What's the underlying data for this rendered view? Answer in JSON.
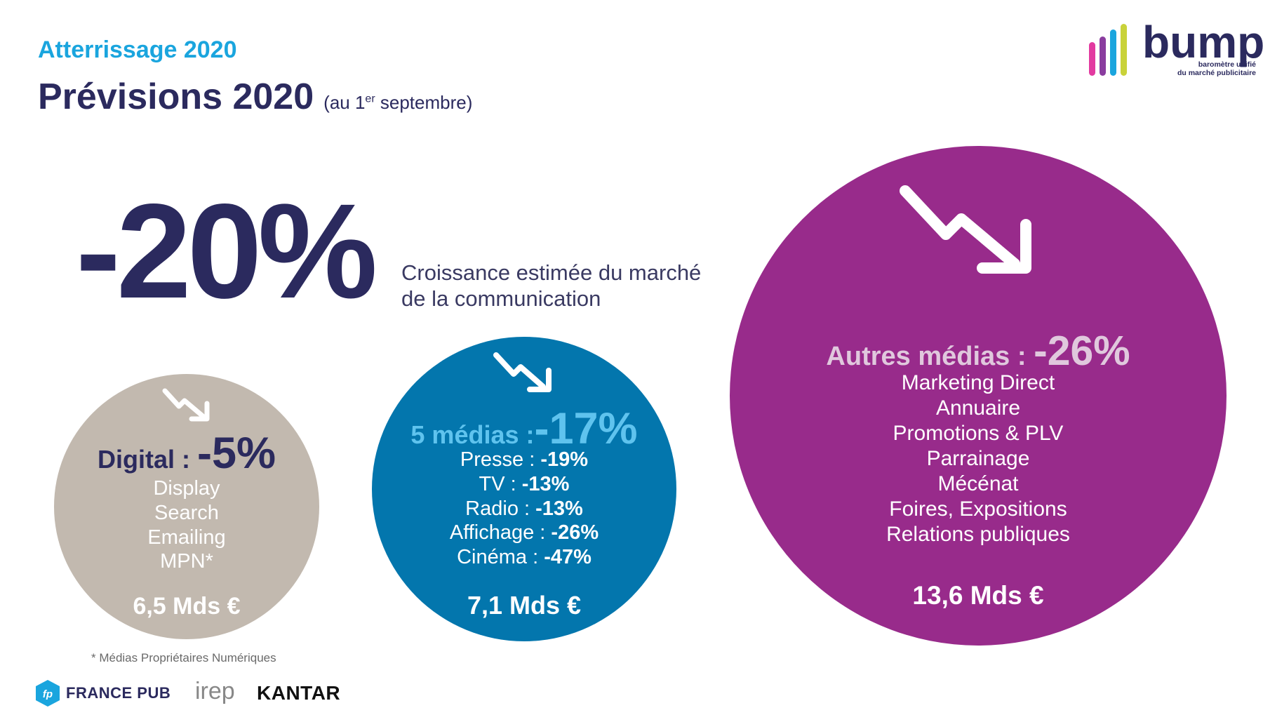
{
  "header": {
    "kicker": "Atterrissage 2020",
    "title": "Prévisions 2020",
    "subtitle_pre": "(au 1",
    "subtitle_sup": "er",
    "subtitle_post": " septembre)"
  },
  "headline": {
    "value": "-20%",
    "description_line1": "Croissance estimée du marché",
    "description_line2": "de la communication"
  },
  "digital": {
    "label": "Digital : ",
    "pct": "-5%",
    "items": [
      "Display",
      "Search",
      "Emailing",
      "MPN*"
    ],
    "total": "6,5 Mds €",
    "color": "#c2b9af"
  },
  "cinq_medias": {
    "label": "5 médias :",
    "pct": "-17%",
    "items": [
      {
        "name": "Presse : ",
        "pct": "-19%"
      },
      {
        "name": "TV : ",
        "pct": "-13%"
      },
      {
        "name": "Radio : ",
        "pct": "-13%"
      },
      {
        "name": "Affichage : ",
        "pct": "-26%"
      },
      {
        "name": "Cinéma : ",
        "pct": "-47%"
      }
    ],
    "total": "7,1 Mds €",
    "color": "#0376ad"
  },
  "autres_medias": {
    "label": "Autres médias : ",
    "pct": "-26%",
    "items": [
      "Marketing Direct",
      "Annuaire",
      "Promotions & PLV",
      "Parrainage",
      "Mécénat",
      "Foires, Expositions",
      "Relations publiques"
    ],
    "total": "13,6 Mds €",
    "color": "#982b8b"
  },
  "footnote": "* Médias Propriétaires Numériques",
  "logos": {
    "bump_word": "bump",
    "bump_tag_line1": "baromètre unifié",
    "bump_tag_line2": "du marché publicitaire",
    "francepub_mark": "fp",
    "francepub": "FRANCE PUB",
    "irep": "irep",
    "kantar": "KANTAR"
  },
  "icons": [
    "trend-down-arrow-icon"
  ]
}
